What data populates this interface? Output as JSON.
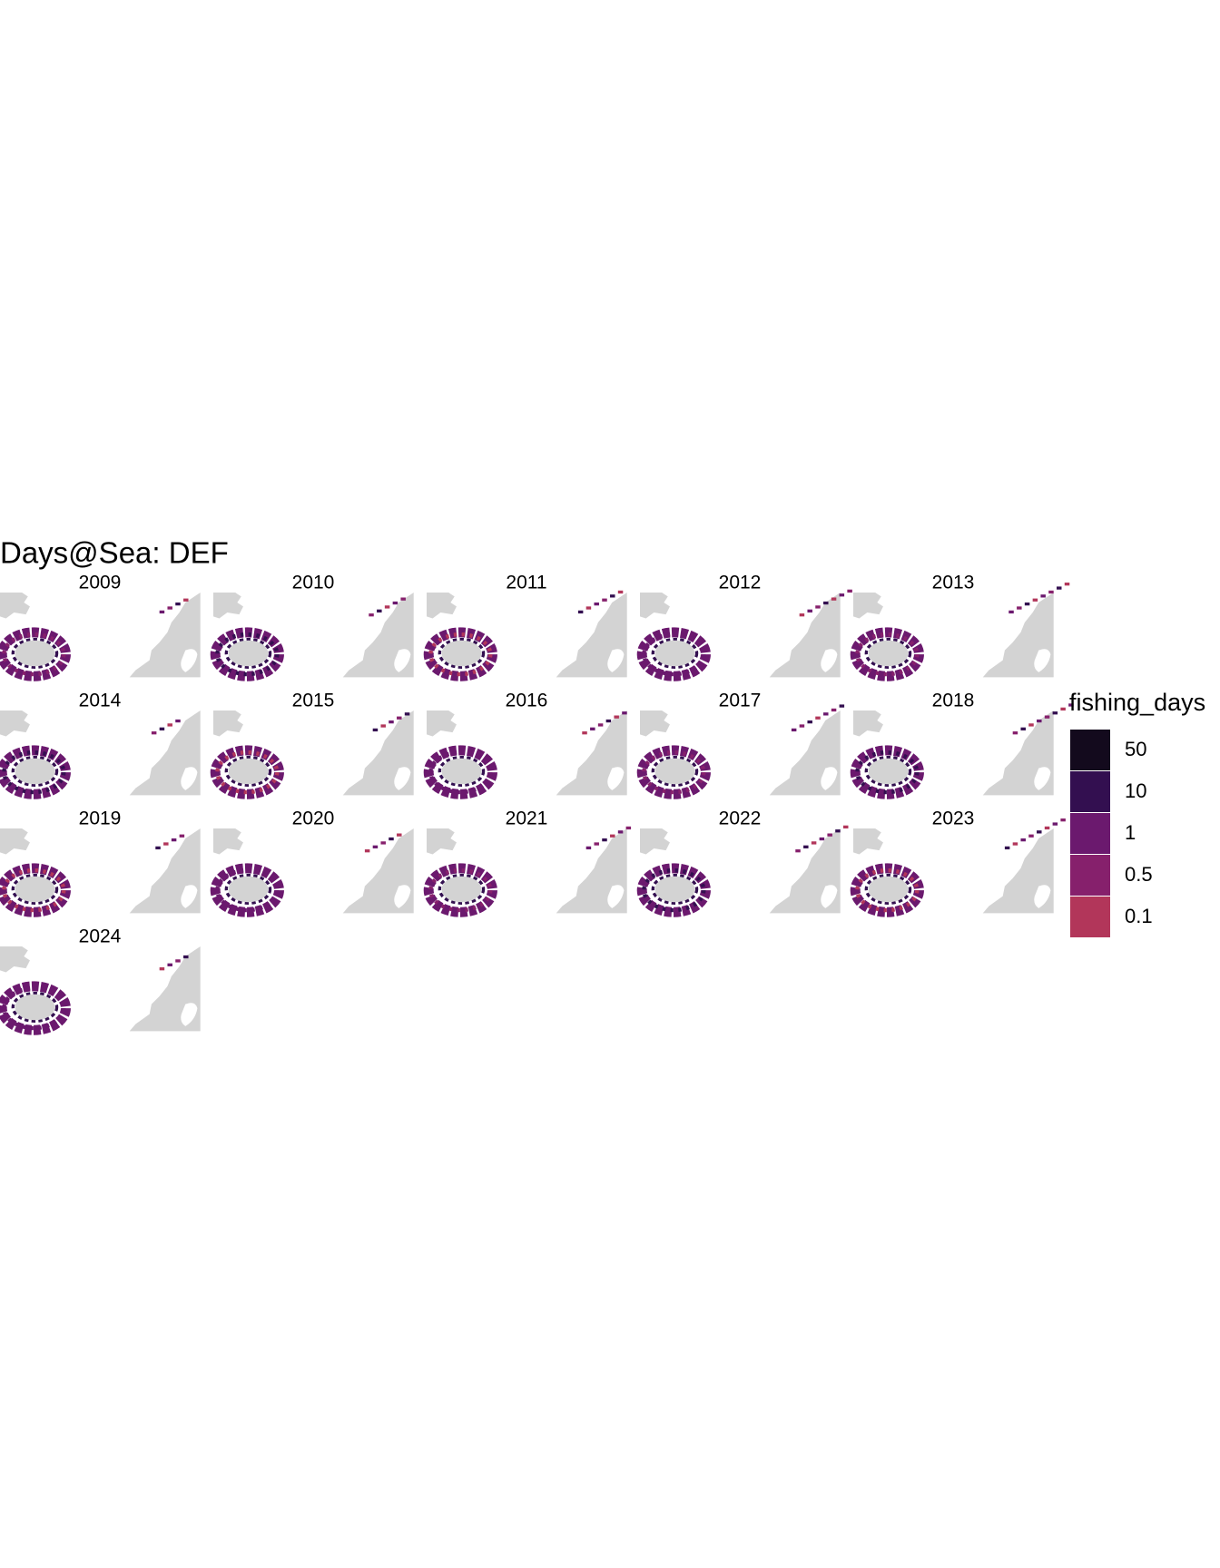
{
  "title": "Days@Sea:  DEF",
  "panels": [
    "2009",
    "2010",
    "2011",
    "2012",
    "2013",
    "2014",
    "2015",
    "2016",
    "2017",
    "2018",
    "2019",
    "2020",
    "2021",
    "2022",
    "2023",
    "2024"
  ],
  "legend": {
    "title": "fishing_days",
    "items": [
      {
        "label": "50",
        "color": "#130a1d"
      },
      {
        "label": "10",
        "color": "#330f50"
      },
      {
        "label": "1",
        "color": "#6b196e"
      },
      {
        "label": "0.5",
        "color": "#86206c"
      },
      {
        "label": "0.1",
        "color": "#b2365a"
      }
    ]
  }
}
